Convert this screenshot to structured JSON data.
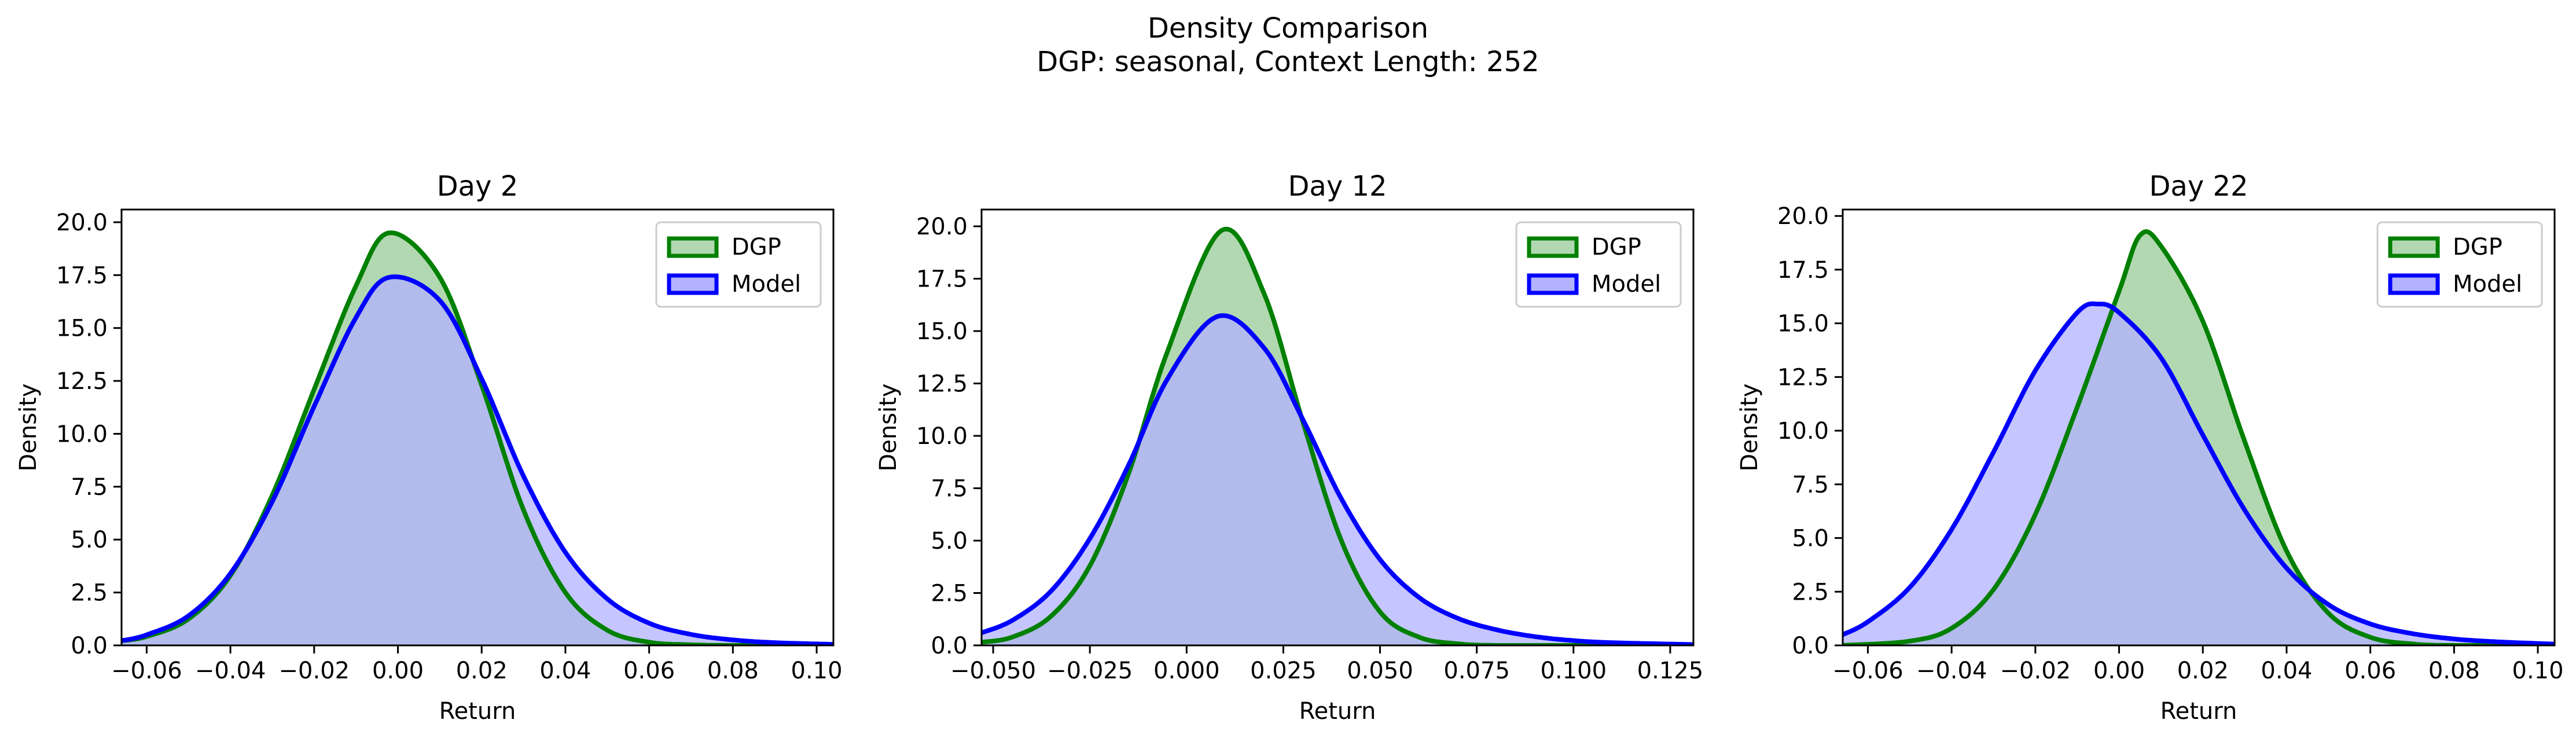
{
  "figure": {
    "title_line1": "Density Comparison",
    "title_line2": "DGP: seasonal, Context Length: 252"
  },
  "colors": {
    "dgp_line": "#008000",
    "dgp_fill": "#b2d8b2",
    "model_line": "#0000ff",
    "model_fill": "#b2b2ff",
    "overlap_fill": "#7f98c8"
  },
  "chart_data": [
    {
      "type": "area",
      "title": "Day 2",
      "xlabel": "Return",
      "ylabel": "Density",
      "xlim": [
        -0.066,
        0.104
      ],
      "ylim": [
        0,
        20.6
      ],
      "xticks": [
        -0.06,
        -0.04,
        -0.02,
        0.0,
        0.02,
        0.04,
        0.06,
        0.08,
        0.1
      ],
      "xtick_labels": [
        "−0.06",
        "−0.04",
        "−0.02",
        "0.00",
        "0.02",
        "0.04",
        "0.06",
        "0.08",
        "0.10"
      ],
      "yticks": [
        0,
        2.5,
        5,
        7.5,
        10,
        12.5,
        15,
        17.5,
        20
      ],
      "ytick_labels": [
        "0.0",
        "2.5",
        "5.0",
        "7.5",
        "10.0",
        "12.5",
        "15.0",
        "17.5",
        "20.0"
      ],
      "legend": {
        "position": "upper right",
        "entries": [
          "DGP",
          "Model"
        ]
      },
      "series": [
        {
          "name": "DGP",
          "x": [
            -0.066,
            -0.06,
            -0.05,
            -0.04,
            -0.03,
            -0.02,
            -0.01,
            -0.002,
            0.01,
            0.02,
            0.03,
            0.04,
            0.05,
            0.06,
            0.07,
            0.08,
            0.09,
            0.104
          ],
          "y": [
            0.22,
            0.42,
            1.25,
            3.3,
            7.1,
            12.1,
            17.0,
            19.5,
            17.4,
            12.3,
            6.4,
            2.5,
            0.72,
            0.15,
            0.03,
            0.0,
            0.0,
            0.0
          ]
        },
        {
          "name": "Model",
          "x": [
            -0.066,
            -0.06,
            -0.05,
            -0.04,
            -0.03,
            -0.02,
            -0.01,
            -0.002,
            0.01,
            0.02,
            0.03,
            0.04,
            0.05,
            0.06,
            0.07,
            0.08,
            0.09,
            0.104
          ],
          "y": [
            0.22,
            0.5,
            1.4,
            3.4,
            6.8,
            11.3,
            15.5,
            17.4,
            16.3,
            12.6,
            8.0,
            4.4,
            2.2,
            1.05,
            0.52,
            0.26,
            0.13,
            0.05
          ]
        }
      ]
    },
    {
      "type": "area",
      "title": "Day 12",
      "xlabel": "Return",
      "ylabel": "Density",
      "xlim": [
        -0.053,
        0.131
      ],
      "ylim": [
        0,
        20.8
      ],
      "xticks": [
        -0.05,
        -0.025,
        0.0,
        0.025,
        0.05,
        0.075,
        0.1,
        0.125
      ],
      "xtick_labels": [
        "−0.050",
        "−0.025",
        "0.000",
        "0.025",
        "0.050",
        "0.075",
        "0.100",
        "0.125"
      ],
      "yticks": [
        0,
        2.5,
        5,
        7.5,
        10,
        12.5,
        15,
        17.5,
        20
      ],
      "ytick_labels": [
        "0.0",
        "2.5",
        "5.0",
        "7.5",
        "10.0",
        "12.5",
        "15.0",
        "17.5",
        "20.0"
      ],
      "legend": {
        "position": "upper right",
        "entries": [
          "DGP",
          "Model"
        ]
      },
      "series": [
        {
          "name": "DGP",
          "x": [
            -0.053,
            -0.045,
            -0.035,
            -0.025,
            -0.015,
            -0.005,
            0.009,
            0.02,
            0.03,
            0.04,
            0.05,
            0.06,
            0.07,
            0.08,
            0.1,
            0.131
          ],
          "y": [
            0.15,
            0.4,
            1.4,
            3.8,
            8.2,
            14.0,
            19.8,
            16.8,
            10.7,
            5.0,
            1.6,
            0.4,
            0.08,
            0.0,
            0.0,
            0.0
          ]
        },
        {
          "name": "Model",
          "x": [
            -0.053,
            -0.045,
            -0.035,
            -0.025,
            -0.015,
            -0.005,
            0.008,
            0.02,
            0.03,
            0.04,
            0.05,
            0.06,
            0.07,
            0.08,
            0.09,
            0.1,
            0.11,
            0.131
          ],
          "y": [
            0.6,
            1.2,
            2.6,
            5.1,
            8.6,
            12.7,
            15.7,
            14.2,
            10.8,
            7.0,
            4.1,
            2.3,
            1.3,
            0.75,
            0.42,
            0.23,
            0.13,
            0.04
          ]
        }
      ]
    },
    {
      "type": "area",
      "title": "Day 22",
      "xlabel": "Return",
      "ylabel": "Density",
      "xlim": [
        -0.066,
        0.104
      ],
      "ylim": [
        0,
        20.3
      ],
      "xticks": [
        -0.06,
        -0.04,
        -0.02,
        0.0,
        0.02,
        0.04,
        0.06,
        0.08,
        0.1
      ],
      "xtick_labels": [
        "−0.06",
        "−0.04",
        "−0.02",
        "0.00",
        "0.02",
        "0.04",
        "0.06",
        "0.08",
        "0.10"
      ],
      "yticks": [
        0,
        2.5,
        5,
        7.5,
        10,
        12.5,
        15,
        17.5,
        20
      ],
      "ytick_labels": [
        "0.0",
        "2.5",
        "5.0",
        "7.5",
        "10.0",
        "12.5",
        "15.0",
        "17.5",
        "20.0"
      ],
      "legend": {
        "position": "upper right",
        "entries": [
          "DGP",
          "Model"
        ]
      },
      "series": [
        {
          "name": "DGP",
          "x": [
            -0.066,
            -0.05,
            -0.04,
            -0.03,
            -0.02,
            -0.01,
            0.0,
            0.005,
            0.01,
            0.02,
            0.03,
            0.04,
            0.05,
            0.06,
            0.07,
            0.08,
            0.104
          ],
          "y": [
            0.0,
            0.2,
            0.8,
            2.6,
            6.1,
            11.1,
            16.5,
            19.1,
            18.6,
            15.1,
            9.5,
            4.4,
            1.5,
            0.38,
            0.07,
            0.0,
            0.0
          ]
        },
        {
          "name": "Model",
          "x": [
            -0.066,
            -0.06,
            -0.05,
            -0.04,
            -0.03,
            -0.02,
            -0.01,
            -0.005,
            0.0,
            0.01,
            0.02,
            0.03,
            0.04,
            0.05,
            0.06,
            0.07,
            0.08,
            0.09,
            0.104
          ],
          "y": [
            0.5,
            1.1,
            2.7,
            5.4,
            9.0,
            12.8,
            15.5,
            15.9,
            15.5,
            13.4,
            9.8,
            6.3,
            3.6,
            1.9,
            1.0,
            0.55,
            0.3,
            0.17,
            0.06
          ]
        }
      ]
    }
  ]
}
